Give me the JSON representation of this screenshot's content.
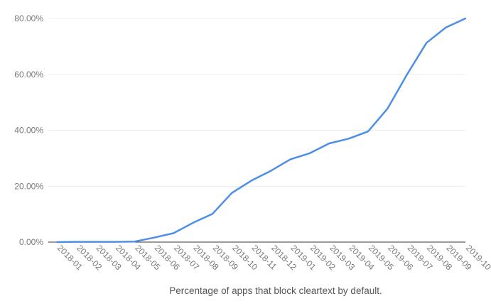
{
  "chart_data": {
    "type": "line",
    "title": "Percentage of apps that block cleartext by default.",
    "xlabel": "",
    "ylabel": "",
    "x": [
      "2018-01",
      "2018-02",
      "2018-03",
      "2018-04",
      "2018-05",
      "2018-06",
      "2018-07",
      "2018-08",
      "2018-09",
      "2018-10",
      "2018-11",
      "2018-12",
      "2019-01",
      "2019-02",
      "2019-03",
      "2019-04",
      "2019-05",
      "2019-06",
      "2019-07",
      "2019-08",
      "2019-09",
      "2019-10"
    ],
    "series": [
      {
        "name": "Percentage of apps that block cleartext by default",
        "values": [
          0.0,
          0.1,
          0.1,
          0.1,
          0.2,
          1.6,
          3.2,
          6.9,
          10.1,
          17.6,
          22.0,
          25.5,
          29.6,
          31.8,
          35.3,
          37.0,
          39.6,
          47.8,
          60.0,
          71.3,
          76.8,
          80.0
        ],
        "color": "#4e8ee6"
      }
    ],
    "ylim": [
      0,
      80
    ],
    "yticks": [
      "0.00%",
      "20.00%",
      "40.00%",
      "60.00%",
      "80.00%"
    ],
    "ytick_values": [
      0,
      20,
      40,
      60,
      80
    ],
    "grid": true,
    "legend": "none"
  }
}
